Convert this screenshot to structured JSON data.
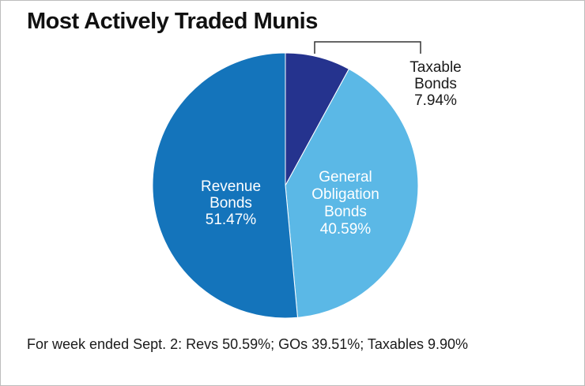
{
  "chart_data": {
    "type": "pie",
    "title": "Most Actively Traded Munis",
    "slices": [
      {
        "name": "Taxable Bonds",
        "label_lines": [
          "Taxable",
          "Bonds",
          "7.94%"
        ],
        "value": 7.94,
        "color": "#25338e",
        "label_color": "#1a1a1a"
      },
      {
        "name": "General Obligation Bonds",
        "label_lines": [
          "General",
          "Obligation",
          "Bonds",
          "40.59%"
        ],
        "value": 40.59,
        "color": "#5bb8e6",
        "label_color": "#ffffff"
      },
      {
        "name": "Revenue Bonds",
        "label_lines": [
          "Revenue",
          "Bonds",
          "51.47%"
        ],
        "value": 51.47,
        "color": "#1474bb",
        "label_color": "#ffffff"
      }
    ],
    "start": "12 o'clock",
    "direction": "clockwise",
    "footnote": "For week ended Sept. 2: Revs 50.59%; GOs 39.51%; Taxables 9.90%"
  }
}
